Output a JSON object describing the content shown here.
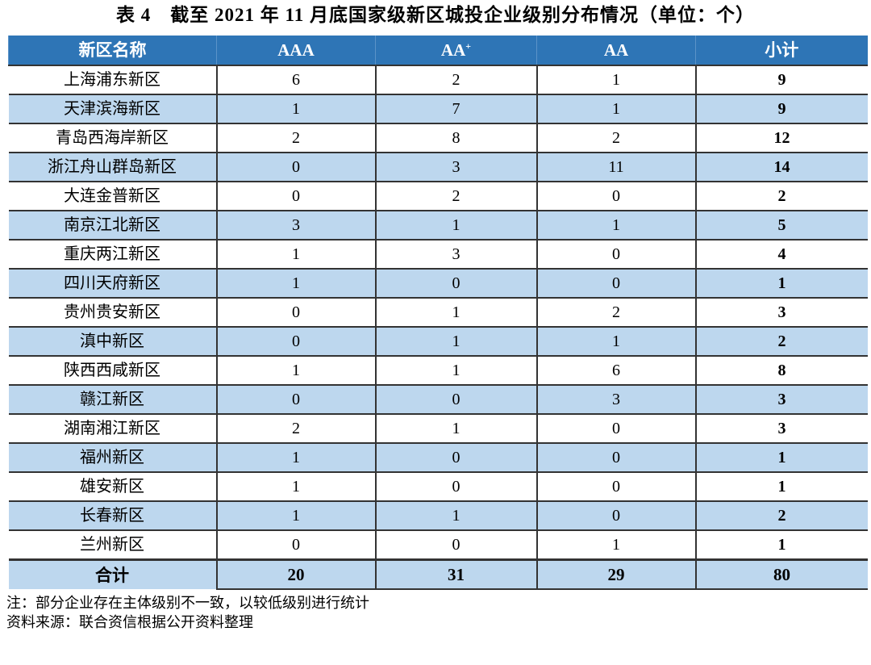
{
  "title": "表 4　截至 2021 年 11 月底国家级新区城投企业级别分布情况（单位：个）",
  "headers": [
    "新区名称",
    "AAA",
    "AA",
    "AA",
    "小计"
  ],
  "header_superscripts": [
    "",
    "",
    "+",
    "",
    ""
  ],
  "rows": [
    [
      "上海浦东新区",
      "6",
      "2",
      "1",
      "9"
    ],
    [
      "天津滨海新区",
      "1",
      "7",
      "1",
      "9"
    ],
    [
      "青岛西海岸新区",
      "2",
      "8",
      "2",
      "12"
    ],
    [
      "浙江舟山群岛新区",
      "0",
      "3",
      "11",
      "14"
    ],
    [
      "大连金普新区",
      "0",
      "2",
      "0",
      "2"
    ],
    [
      "南京江北新区",
      "3",
      "1",
      "1",
      "5"
    ],
    [
      "重庆两江新区",
      "1",
      "3",
      "0",
      "4"
    ],
    [
      "四川天府新区",
      "1",
      "0",
      "0",
      "1"
    ],
    [
      "贵州贵安新区",
      "0",
      "1",
      "2",
      "3"
    ],
    [
      "滇中新区",
      "0",
      "1",
      "1",
      "2"
    ],
    [
      "陕西西咸新区",
      "1",
      "1",
      "6",
      "8"
    ],
    [
      "赣江新区",
      "0",
      "0",
      "3",
      "3"
    ],
    [
      "湖南湘江新区",
      "2",
      "1",
      "0",
      "3"
    ],
    [
      "福州新区",
      "1",
      "0",
      "0",
      "1"
    ],
    [
      "雄安新区",
      "1",
      "0",
      "0",
      "1"
    ],
    [
      "长春新区",
      "1",
      "1",
      "0",
      "2"
    ],
    [
      "兰州新区",
      "0",
      "0",
      "1",
      "1"
    ]
  ],
  "total": [
    "合计",
    "20",
    "31",
    "29",
    "80"
  ],
  "note": "注：部分企业存在主体级别不一致，以较低级别进行统计",
  "source": "资料来源：联合资信根据公开资料整理",
  "colors": {
    "header_bg": "#2e75b6",
    "alt_row_bg": "#bdd7ee"
  }
}
